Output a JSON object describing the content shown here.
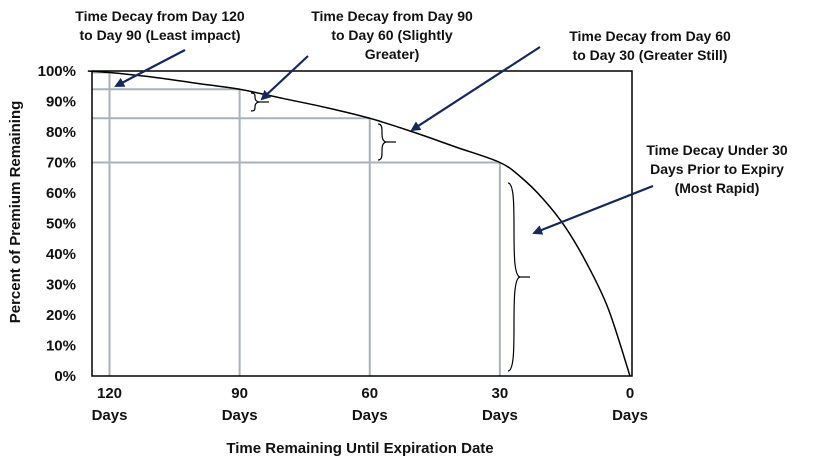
{
  "chart_data": {
    "type": "line",
    "title": "",
    "xlabel": "Time Remaining Until Expiration Date",
    "ylabel": "Percent of Premium Remaining",
    "x_range": [
      125,
      0
    ],
    "xlim": [
      125,
      0
    ],
    "ylim": [
      0,
      100
    ],
    "grid": "guide lines at key points",
    "y_ticks": [
      "100%",
      "90%",
      "80%",
      "70%",
      "60%",
      "50%",
      "40%",
      "30%",
      "20%",
      "10%",
      "0%"
    ],
    "x_ticks": [
      {
        "value": 120,
        "num": "120",
        "unit": "Days"
      },
      {
        "value": 90,
        "num": "90",
        "unit": "Days"
      },
      {
        "value": 60,
        "num": "60",
        "unit": "Days"
      },
      {
        "value": 30,
        "num": "30",
        "unit": "Days"
      },
      {
        "value": 0,
        "num": "0",
        "unit": "Days"
      }
    ],
    "series": [
      {
        "color": "#000000",
        "x": [
          125,
          120,
          110,
          100,
          90,
          80,
          70,
          60,
          50,
          40,
          30,
          25,
          20,
          15,
          10,
          5,
          0
        ],
        "y": [
          100,
          99.5,
          98,
          96,
          94,
          91,
          88,
          84.5,
          80,
          75,
          70,
          65,
          58,
          49,
          37,
          22,
          0
        ]
      }
    ],
    "guides": [
      {
        "x": 120,
        "y": 99.5
      },
      {
        "x": 90,
        "y": 94
      },
      {
        "x": 60,
        "y": 84.5
      },
      {
        "x": 30,
        "y": 70
      }
    ],
    "annotations": [
      {
        "lines": [
          "Time Decay from Day 120",
          "to Day 90 (Least impact)"
        ]
      },
      {
        "lines": [
          "Time Decay from Day 90",
          "to Day 60 (Slightly",
          "Greater)"
        ]
      },
      {
        "lines": [
          "Time Decay from Day 60",
          "to Day 30 (Greater Still)"
        ]
      },
      {
        "lines": [
          "Time Decay Under 30",
          "Days Prior to Expiry",
          "(Most Rapid)"
        ]
      }
    ],
    "colors": {
      "curve": "#000000",
      "guide": "#a8b2bc",
      "arrow": "#14285a",
      "frame": "#000000"
    }
  }
}
